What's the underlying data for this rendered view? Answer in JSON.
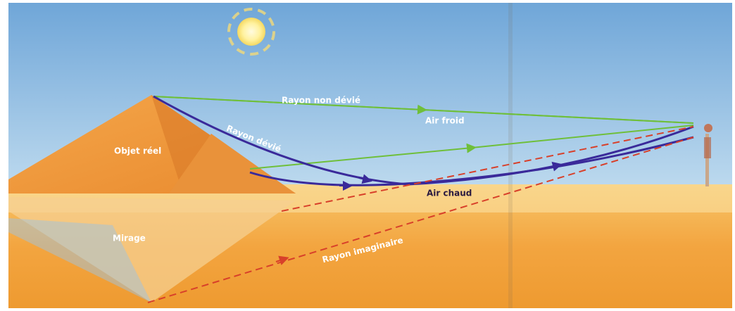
{
  "labels": {
    "undeviated_ray": "Rayon non dévié",
    "deviated_ray": "Rayon  dévié",
    "cold_air": "Air froid",
    "real_object": "Objet réel",
    "hot_air": "Air chaud",
    "mirage": "Mirage",
    "imaginary_ray": "Rayon imaginaire"
  }
}
